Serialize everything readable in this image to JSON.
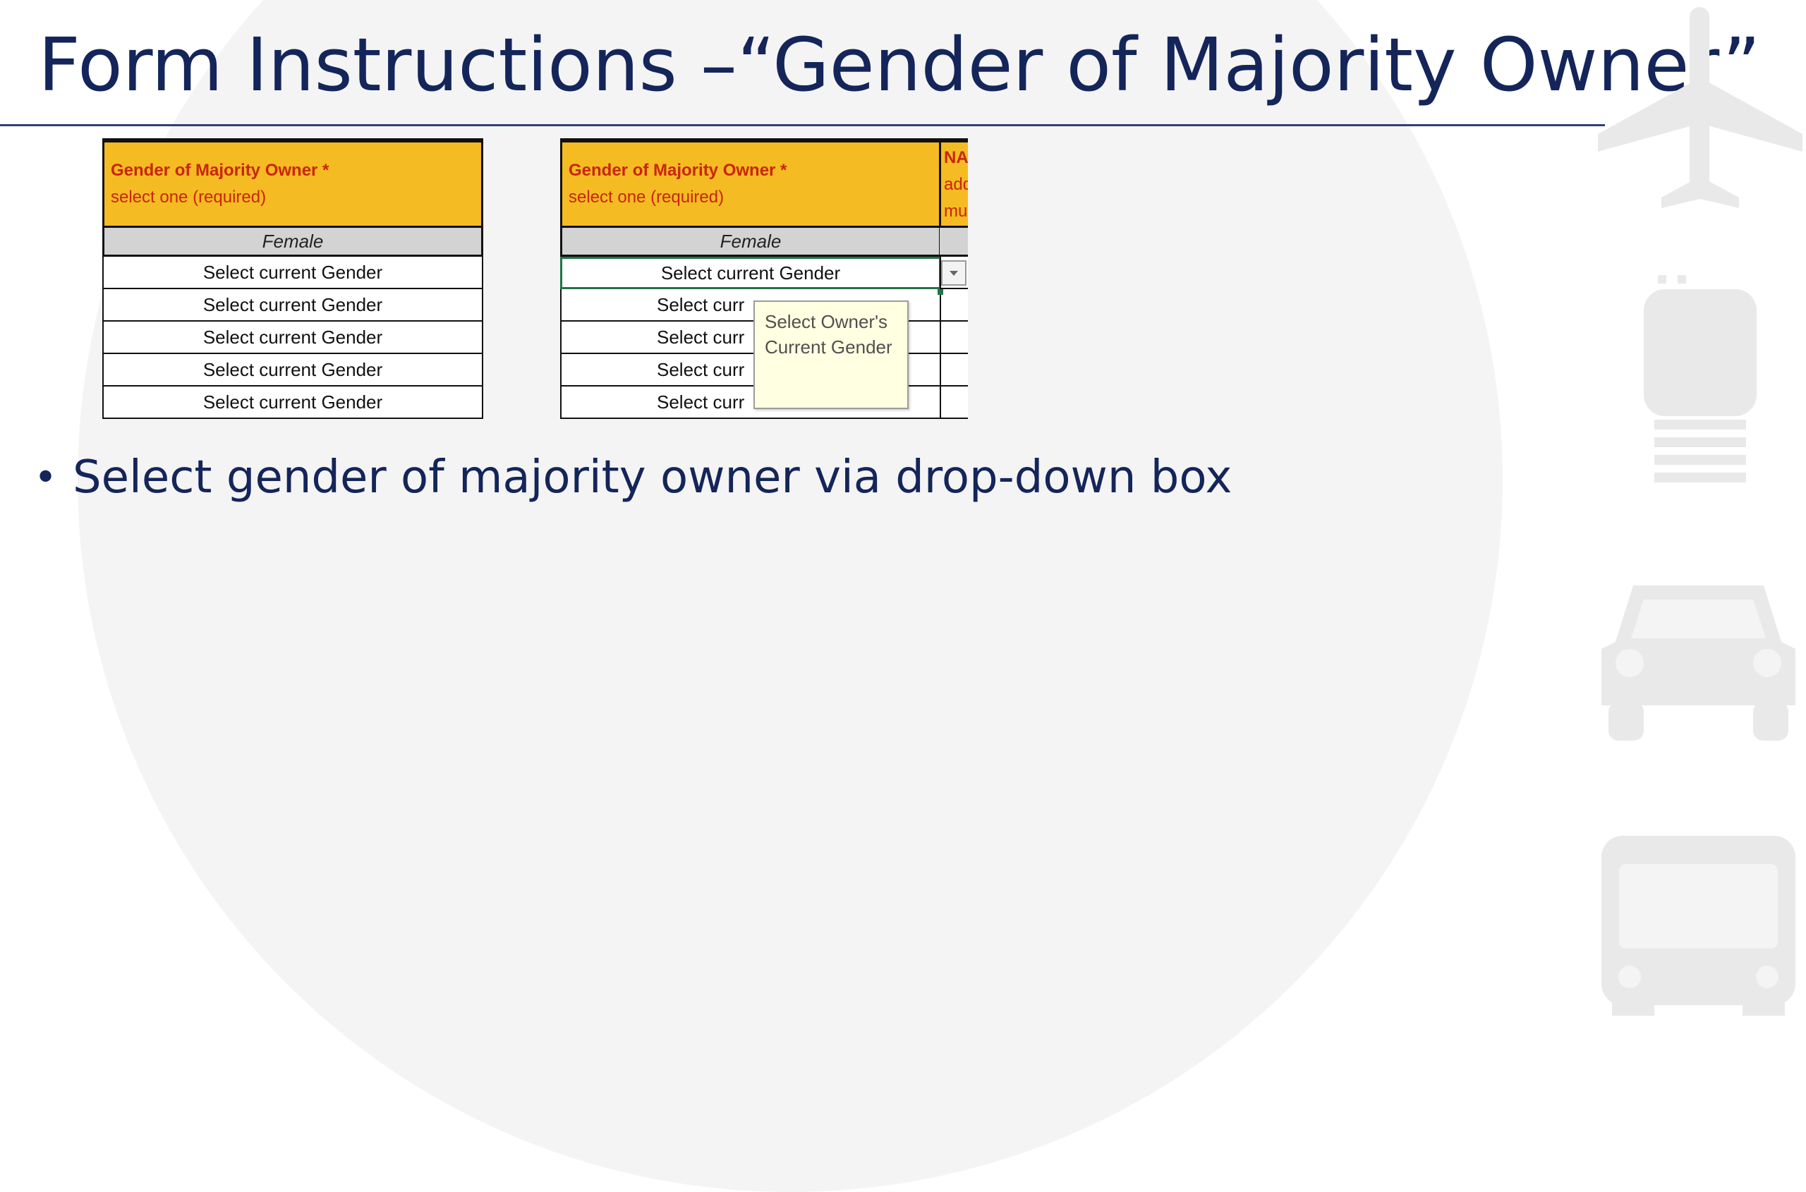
{
  "slide": {
    "title": "Form Instructions –“Gender of Majority Owner”",
    "bullet": "Select gender of majority owner via drop-down box"
  },
  "sheet_left": {
    "header_title": "Gender of Majority Owner *",
    "header_subtitle": "select one (required)",
    "subheader": "Female",
    "rows": [
      "Select current Gender",
      "Select current Gender",
      "Select current Gender",
      "Select current Gender",
      "Select current Gender"
    ]
  },
  "sheet_right": {
    "header_title": "Gender of Majority Owner *",
    "header_subtitle": "select one (required)",
    "subheader": "Female",
    "rows": [
      "Select current Gender",
      "Select curr",
      "Select curr",
      "Select curr",
      "Select curr"
    ],
    "next_column_header": [
      "NA",
      "add",
      "mu"
    ],
    "dropdown_icon": "dropdown-arrow-icon"
  },
  "tooltip": {
    "line1": "Select Owner's",
    "line2": "Current Gender"
  },
  "decorative_icons": [
    "airplane-icon",
    "train-icon",
    "car-icon",
    "bus-icon"
  ],
  "colors": {
    "title": "#14255a",
    "header_fill": "#f5bb23",
    "header_text": "#c8260c",
    "subheader_fill": "#d3d3d3",
    "selection": "#217346",
    "tooltip_fill": "#ffffe1",
    "icon": "#e9e9e9"
  }
}
